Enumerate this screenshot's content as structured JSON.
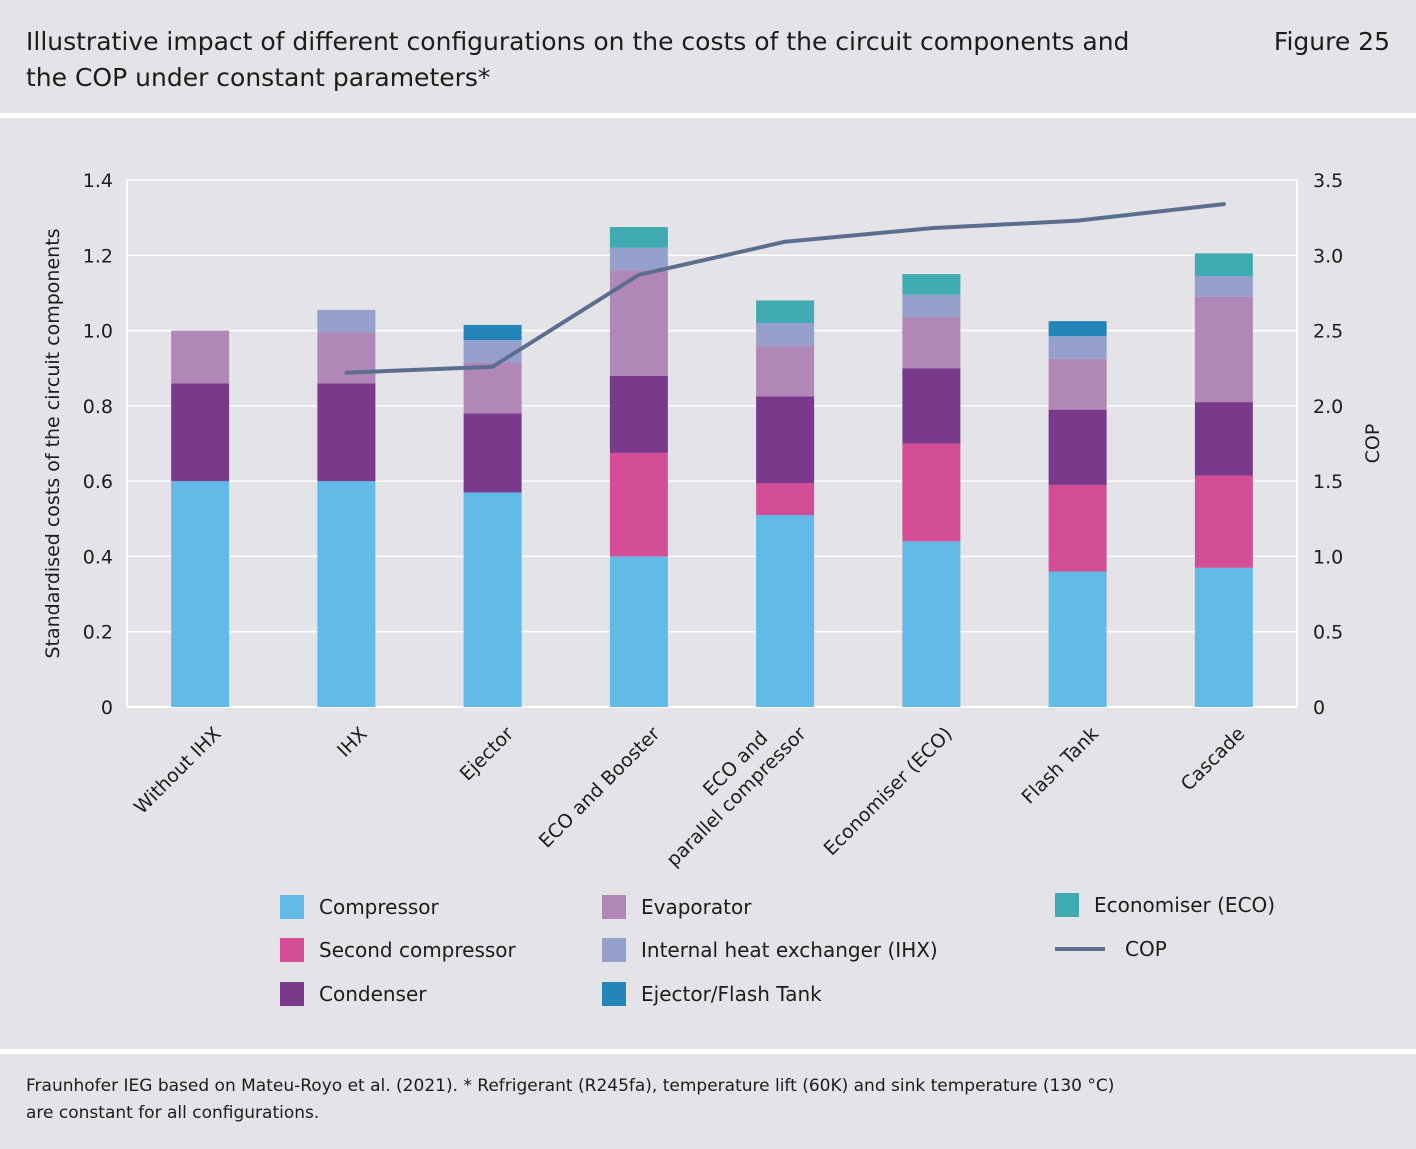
{
  "header": {
    "title": "Illustrative impact of different configurations on the costs of the circuit components and the COP under constant parameters*",
    "figure_label": "Figure 25"
  },
  "colors": {
    "Compressor": "#62bae6",
    "Second compressor": "#d44e97",
    "Condenser": "#793a8b",
    "Evaporator": "#b087b7",
    "Internal heat exchanger (IHX)": "#96a0cc",
    "Ejector/Flash Tank": "#2485b9",
    "Economiser (ECO)": "#3faab1",
    "COP": "#5c6e90"
  },
  "chart_data": {
    "type": "bar",
    "stacked": true,
    "categories": [
      [
        "Without IHX"
      ],
      [
        "IHX"
      ],
      [
        "Ejector"
      ],
      [
        "ECO and Booster"
      ],
      [
        "ECO and",
        "parallel compressor"
      ],
      [
        "Economiser (ECO)"
      ],
      [
        "Flash Tank"
      ],
      [
        "Cascade"
      ]
    ],
    "series": [
      {
        "name": "Compressor",
        "values": [
          0.6,
          0.6,
          0.57,
          0.4,
          0.51,
          0.44,
          0.36,
          0.37
        ]
      },
      {
        "name": "Second compressor",
        "values": [
          0,
          0,
          0,
          0.275,
          0.085,
          0.26,
          0.23,
          0.245
        ]
      },
      {
        "name": "Condenser",
        "values": [
          0.26,
          0.26,
          0.21,
          0.205,
          0.23,
          0.2,
          0.2,
          0.195
        ]
      },
      {
        "name": "Evaporator",
        "values": [
          0.14,
          0.135,
          0.135,
          0.28,
          0.135,
          0.135,
          0.135,
          0.28
        ]
      },
      {
        "name": "Internal heat exchanger (IHX)",
        "values": [
          0,
          0.06,
          0.06,
          0.06,
          0.06,
          0.06,
          0.06,
          0.055
        ]
      },
      {
        "name": "Ejector/Flash Tank",
        "values": [
          0,
          0,
          0.04,
          0,
          0,
          0,
          0.04,
          0
        ]
      },
      {
        "name": "Economiser (ECO)",
        "values": [
          0,
          0,
          0,
          0.055,
          0.06,
          0.055,
          0,
          0.06
        ]
      }
    ],
    "line_series": {
      "name": "COP",
      "axis": "right",
      "values": [
        null,
        2.22,
        2.26,
        2.87,
        3.09,
        3.18,
        3.23,
        3.34
      ]
    },
    "title": "Illustrative impact of different configurations on the costs of the circuit components and the COP under constant parameters*",
    "ylabel": "Standardised costs of the circuit components",
    "y2label": "COP",
    "xlabel": "",
    "ylim": [
      0,
      1.4
    ],
    "y2lim": [
      0,
      3.5
    ],
    "yticks": [
      "0",
      "0.2",
      "0.4",
      "0.6",
      "0.8",
      "1.0",
      "1.2",
      "1.4"
    ],
    "y2ticks": [
      "0",
      "0.5",
      "1.0",
      "1.5",
      "2.0",
      "2.5",
      "3.0",
      "3.5"
    ],
    "grid": true,
    "legend_position": "bottom"
  },
  "legend": [
    {
      "label": "Compressor",
      "kind": "box"
    },
    {
      "label": "Second compressor",
      "kind": "box"
    },
    {
      "label": "Condenser",
      "kind": "box"
    },
    {
      "label": "Evaporator",
      "kind": "box"
    },
    {
      "label": "Internal heat exchanger (IHX)",
      "kind": "box"
    },
    {
      "label": "Ejector/Flash Tank",
      "kind": "box"
    },
    {
      "label": "Economiser (ECO)",
      "kind": "box"
    },
    {
      "label": "COP",
      "kind": "line"
    }
  ],
  "footer": {
    "source_line1": "Fraunhofer IEG based on Mateu-Royo et al. (2021). * Refrigerant (R245fa), temperature lift (60K) and sink temperature (130 °C)",
    "source_line2": "are constant for all configurations."
  }
}
